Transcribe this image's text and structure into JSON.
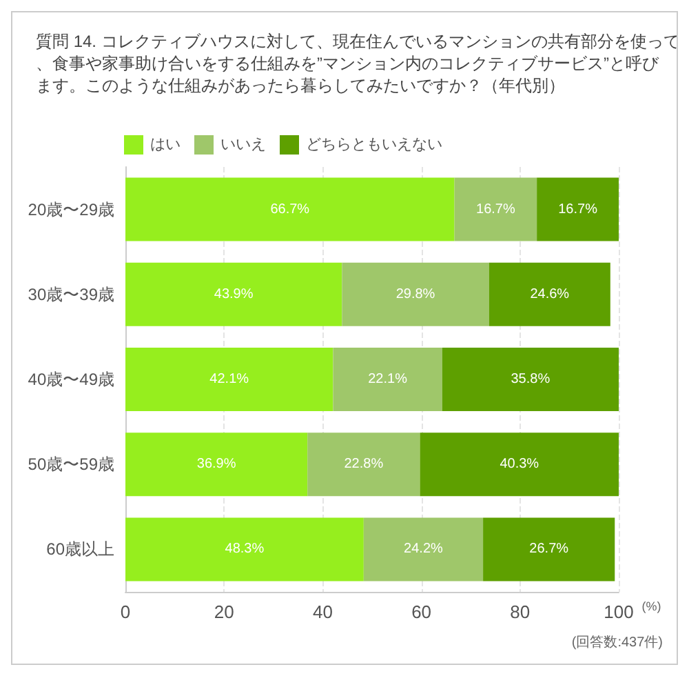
{
  "chart_data": {
    "type": "bar",
    "orientation": "horizontal",
    "stacked": true,
    "title": "質問 14. コレクティブハウスに対して、現在住んでいるマンションの共有部分を使って、食事や家事助け合いをする仕組みを”マンション内のコレクティブサービス”と呼びます。このような仕組みがあったら暮らしてみたいですか？（年代別）",
    "xlabel": "(%)",
    "annotations": [
      "(回答数:437件)"
    ],
    "categories": [
      "20歳〜29歳",
      "30歳〜39歳",
      "40歳〜49歳",
      "50歳〜59歳",
      "60歳以上"
    ],
    "series": [
      {
        "name": "はい",
        "color": "#96ee1e",
        "values": [
          66.7,
          43.9,
          42.1,
          36.9,
          48.3
        ],
        "value_labels": [
          "66.7%",
          "43.9%",
          "42.1%",
          "36.9%",
          "48.3%"
        ]
      },
      {
        "name": "いいえ",
        "color": "#9fc76a",
        "values": [
          16.7,
          29.8,
          22.1,
          22.8,
          24.2
        ],
        "value_labels": [
          "16.7%",
          "29.8%",
          "22.1%",
          "22.8%",
          "24.2%"
        ]
      },
      {
        "name": "どちらともいえない",
        "color": "#5ea000",
        "values": [
          16.7,
          24.6,
          35.8,
          40.3,
          26.7
        ],
        "value_labels": [
          "16.7%",
          "24.6%",
          "35.8%",
          "40.3%",
          "26.7%"
        ]
      }
    ],
    "xlim": [
      0,
      100
    ],
    "xticks": [
      0,
      20,
      40,
      60,
      80,
      100
    ],
    "grid": "x",
    "legend": "top left"
  }
}
